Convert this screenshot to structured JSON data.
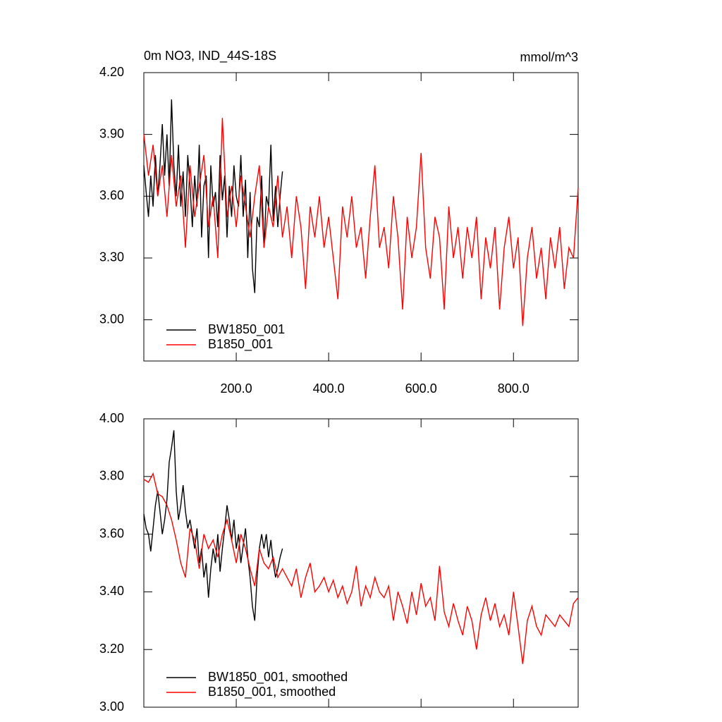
{
  "chart_data": [
    {
      "type": "line",
      "title": "0m NO3, IND_44S-18S",
      "units": "mmol/m^3",
      "xlim": [
        0,
        940
      ],
      "ylim": [
        2.8,
        4.2
      ],
      "xticks": [
        {
          "value": 200,
          "label": "200.0"
        },
        {
          "value": 400,
          "label": "400.0"
        },
        {
          "value": 600,
          "label": "600.0"
        },
        {
          "value": 800,
          "label": "800.0"
        }
      ],
      "yticks": [
        {
          "value": 3.0,
          "label": "3.00"
        },
        {
          "value": 3.3,
          "label": "3.30"
        },
        {
          "value": 3.6,
          "label": "3.60"
        },
        {
          "value": 3.9,
          "label": "3.90"
        },
        {
          "value": 4.2,
          "label": "4.20"
        }
      ],
      "series": [
        {
          "name": "BW1850_001",
          "color": "#000000",
          "x": [
            0,
            5,
            10,
            15,
            20,
            25,
            30,
            35,
            40,
            45,
            50,
            55,
            60,
            65,
            70,
            75,
            80,
            85,
            90,
            95,
            100,
            105,
            110,
            115,
            120,
            125,
            130,
            135,
            140,
            145,
            150,
            155,
            160,
            165,
            170,
            175,
            180,
            185,
            190,
            195,
            200,
            205,
            210,
            215,
            220,
            225,
            230,
            235,
            240,
            245,
            250,
            255,
            260,
            265,
            270,
            275,
            280,
            285,
            290,
            295,
            300
          ],
          "values": [
            3.75,
            3.62,
            3.5,
            3.7,
            3.55,
            3.8,
            3.6,
            3.75,
            3.95,
            3.7,
            3.9,
            3.65,
            4.07,
            3.75,
            3.6,
            3.85,
            3.55,
            3.72,
            3.5,
            3.8,
            3.65,
            3.45,
            3.7,
            3.55,
            3.85,
            3.4,
            3.65,
            3.7,
            3.3,
            3.75,
            3.55,
            3.62,
            3.45,
            3.8,
            3.58,
            3.7,
            3.4,
            3.65,
            3.5,
            3.75,
            3.6,
            3.55,
            3.8,
            3.5,
            3.68,
            3.3,
            3.62,
            3.25,
            3.13,
            3.5,
            3.45,
            3.7,
            3.35,
            3.6,
            3.55,
            3.85,
            3.48,
            3.65,
            3.45,
            3.6,
            3.72
          ]
        },
        {
          "name": "B1850_001",
          "color": "#ff0000",
          "x": [
            0,
            10,
            20,
            30,
            40,
            50,
            60,
            70,
            80,
            90,
            100,
            110,
            120,
            130,
            140,
            150,
            160,
            170,
            180,
            190,
            200,
            210,
            220,
            230,
            240,
            250,
            260,
            270,
            280,
            290,
            300,
            310,
            320,
            330,
            340,
            350,
            360,
            370,
            380,
            390,
            400,
            410,
            420,
            430,
            440,
            450,
            460,
            470,
            480,
            490,
            500,
            510,
            520,
            530,
            540,
            550,
            560,
            570,
            580,
            590,
            600,
            610,
            620,
            630,
            640,
            650,
            660,
            670,
            680,
            690,
            700,
            710,
            720,
            730,
            740,
            750,
            760,
            770,
            780,
            790,
            800,
            810,
            820,
            830,
            840,
            850,
            860,
            870,
            880,
            890,
            900,
            910,
            920,
            930,
            940
          ],
          "values": [
            3.9,
            3.7,
            3.85,
            3.6,
            3.75,
            3.5,
            3.8,
            3.55,
            3.7,
            3.35,
            3.75,
            3.5,
            3.65,
            3.8,
            3.45,
            3.6,
            3.3,
            3.98,
            3.5,
            3.65,
            3.45,
            3.7,
            3.55,
            3.4,
            3.6,
            3.75,
            3.35,
            3.55,
            3.45,
            3.7,
            3.4,
            3.55,
            3.3,
            3.6,
            3.45,
            3.15,
            3.55,
            3.4,
            3.6,
            3.35,
            3.5,
            3.3,
            3.1,
            3.55,
            3.4,
            3.6,
            3.35,
            3.45,
            3.2,
            3.5,
            3.75,
            3.35,
            3.45,
            3.25,
            3.6,
            3.4,
            3.05,
            3.5,
            3.3,
            3.45,
            3.81,
            3.35,
            3.2,
            3.5,
            3.4,
            3.05,
            3.55,
            3.3,
            3.45,
            3.2,
            3.45,
            3.3,
            3.5,
            3.1,
            3.4,
            3.25,
            3.45,
            3.05,
            3.35,
            3.5,
            3.25,
            3.4,
            2.97,
            3.3,
            3.45,
            3.2,
            3.35,
            3.1,
            3.4,
            3.25,
            3.45,
            3.15,
            3.35,
            3.3,
            3.64
          ]
        }
      ]
    },
    {
      "type": "line",
      "xlim": [
        0,
        940
      ],
      "ylim": [
        3.0,
        4.0
      ],
      "xticks": [
        200,
        400,
        600,
        800
      ],
      "yticks": [
        {
          "value": 3.0,
          "label": "3.00"
        },
        {
          "value": 3.2,
          "label": "3.20"
        },
        {
          "value": 3.4,
          "label": "3.40"
        },
        {
          "value": 3.6,
          "label": "3.60"
        },
        {
          "value": 3.8,
          "label": "3.80"
        },
        {
          "value": 4.0,
          "label": "4.00"
        }
      ],
      "series": [
        {
          "name": "BW1850_001, smoothed",
          "color": "#000000",
          "x": [
            0,
            5,
            10,
            15,
            20,
            25,
            30,
            35,
            40,
            45,
            50,
            55,
            60,
            65,
            70,
            75,
            80,
            85,
            90,
            95,
            100,
            105,
            110,
            115,
            120,
            125,
            130,
            135,
            140,
            145,
            150,
            155,
            160,
            165,
            170,
            175,
            180,
            185,
            190,
            195,
            200,
            205,
            210,
            215,
            220,
            225,
            230,
            235,
            240,
            245,
            250,
            255,
            260,
            265,
            270,
            275,
            280,
            285,
            290,
            295,
            300
          ],
          "values": [
            3.67,
            3.62,
            3.6,
            3.54,
            3.62,
            3.7,
            3.75,
            3.68,
            3.6,
            3.65,
            3.72,
            3.85,
            3.9,
            3.96,
            3.75,
            3.65,
            3.7,
            3.77,
            3.68,
            3.62,
            3.65,
            3.6,
            3.55,
            3.62,
            3.5,
            3.55,
            3.45,
            3.5,
            3.38,
            3.48,
            3.55,
            3.5,
            3.6,
            3.47,
            3.55,
            3.62,
            3.7,
            3.65,
            3.58,
            3.65,
            3.55,
            3.6,
            3.5,
            3.56,
            3.62,
            3.52,
            3.45,
            3.35,
            3.3,
            3.45,
            3.55,
            3.6,
            3.55,
            3.6,
            3.52,
            3.58,
            3.5,
            3.45,
            3.48,
            3.52,
            3.55
          ]
        },
        {
          "name": "B1850_001, smoothed",
          "color": "#ff0000",
          "x": [
            0,
            10,
            20,
            30,
            40,
            50,
            60,
            70,
            80,
            90,
            100,
            110,
            120,
            130,
            140,
            150,
            160,
            170,
            180,
            190,
            200,
            210,
            220,
            230,
            240,
            250,
            260,
            270,
            280,
            290,
            300,
            310,
            320,
            330,
            340,
            350,
            360,
            370,
            380,
            390,
            400,
            410,
            420,
            430,
            440,
            450,
            460,
            470,
            480,
            490,
            500,
            510,
            520,
            530,
            540,
            550,
            560,
            570,
            580,
            590,
            600,
            610,
            620,
            630,
            640,
            650,
            660,
            670,
            680,
            690,
            700,
            710,
            720,
            730,
            740,
            750,
            760,
            770,
            780,
            790,
            800,
            810,
            820,
            830,
            840,
            850,
            860,
            870,
            880,
            890,
            900,
            910,
            920,
            930,
            940
          ],
          "values": [
            3.79,
            3.78,
            3.81,
            3.74,
            3.73,
            3.7,
            3.65,
            3.58,
            3.5,
            3.45,
            3.62,
            3.58,
            3.48,
            3.6,
            3.55,
            3.58,
            3.52,
            3.6,
            3.65,
            3.58,
            3.5,
            3.6,
            3.55,
            3.48,
            3.42,
            3.55,
            3.5,
            3.48,
            3.52,
            3.45,
            3.48,
            3.45,
            3.42,
            3.48,
            3.38,
            3.45,
            3.5,
            3.4,
            3.42,
            3.45,
            3.4,
            3.44,
            3.38,
            3.42,
            3.36,
            3.4,
            3.49,
            3.35,
            3.42,
            3.38,
            3.45,
            3.4,
            3.38,
            3.42,
            3.3,
            3.4,
            3.35,
            3.29,
            3.4,
            3.32,
            3.43,
            3.35,
            3.38,
            3.3,
            3.49,
            3.33,
            3.28,
            3.36,
            3.3,
            3.25,
            3.35,
            3.3,
            3.2,
            3.32,
            3.38,
            3.3,
            3.36,
            3.28,
            3.32,
            3.25,
            3.4,
            3.28,
            3.15,
            3.3,
            3.35,
            3.28,
            3.25,
            3.32,
            3.3,
            3.28,
            3.32,
            3.3,
            3.28,
            3.36,
            3.38
          ]
        }
      ]
    }
  ]
}
